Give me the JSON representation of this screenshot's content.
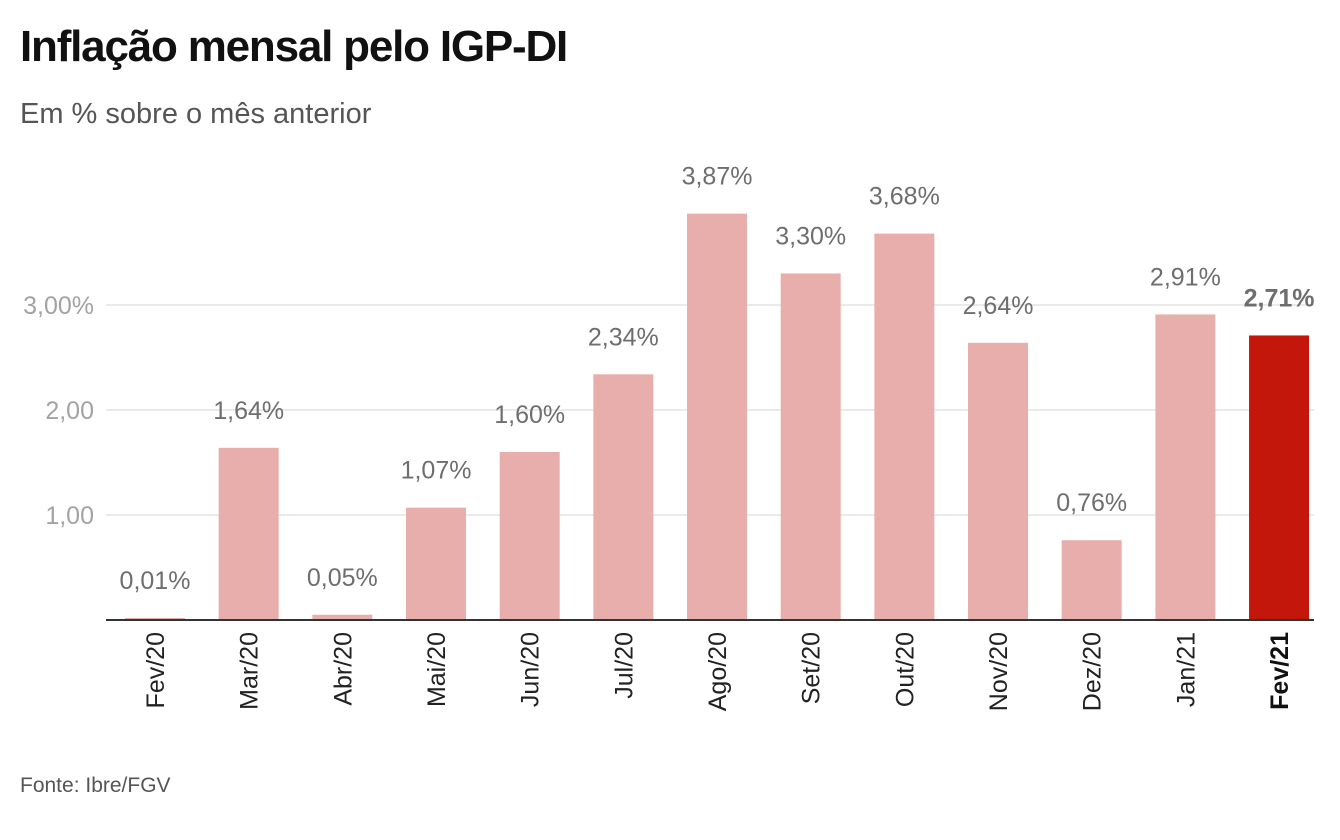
{
  "title": "Inflação mensal pelo IGP-DI",
  "subtitle": "Em % sobre o mês anterior",
  "source": "Fonte: Ibre/FGV",
  "colors": {
    "bar": "#e8aeab",
    "highlight_bar": "#c4170c",
    "gridline": "#e3e3e3",
    "baseline": "#333333"
  },
  "chart_data": {
    "type": "bar",
    "categories": [
      "Fev/20",
      "Mar/20",
      "Abr/20",
      "Mai/20",
      "Jun/20",
      "Jul/20",
      "Ago/20",
      "Set/20",
      "Out/20",
      "Nov/20",
      "Dez/20",
      "Jan/21",
      "Fev/21"
    ],
    "values": [
      0.01,
      1.64,
      0.05,
      1.07,
      1.6,
      2.34,
      3.87,
      3.3,
      3.68,
      2.64,
      0.76,
      2.91,
      2.71
    ],
    "value_labels": [
      "0,01%",
      "1,64%",
      "0,05%",
      "1,07%",
      "1,60%",
      "2,34%",
      "3,87%",
      "3,30%",
      "3,68%",
      "2,64%",
      "0,76%",
      "2,91%",
      "2,71%"
    ],
    "highlight_index": 12,
    "title": "Inflação mensal pelo IGP-DI",
    "subtitle": "Em % sobre o mês anterior",
    "xlabel": "",
    "ylabel": "",
    "y_ticks": [
      1,
      2,
      3
    ],
    "y_tick_labels": [
      "1,00",
      "2,00",
      "3,00%"
    ],
    "ylim": [
      0,
      4
    ],
    "grid": true,
    "legend": "none"
  }
}
